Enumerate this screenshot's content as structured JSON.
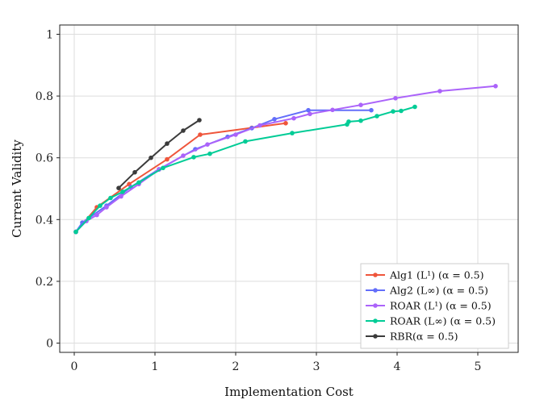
{
  "chart_data": {
    "type": "line",
    "title": "",
    "xlabel": "Implementation Cost",
    "ylabel": "Current Validity",
    "xlim": [
      -0.18,
      5.5
    ],
    "ylim": [
      -0.03,
      1.03
    ],
    "x_ticks": [
      0,
      1,
      2,
      3,
      4,
      5
    ],
    "y_ticks": [
      0,
      0.2,
      0.4,
      0.6,
      0.8,
      1
    ],
    "x_tick_labels": [
      "0",
      "1",
      "2",
      "3",
      "4",
      "5"
    ],
    "y_tick_labels": [
      "0",
      "0.2",
      "0.4",
      "0.6",
      "0.8",
      "1"
    ],
    "grid": true,
    "legend_position": "bottom-right",
    "series": [
      {
        "name": "Alg1 (L¹) (α = 0.5)",
        "color": "#ef553b",
        "points": [
          [
            0.02,
            0.36
          ],
          [
            0.28,
            0.44
          ],
          [
            0.68,
            0.515
          ],
          [
            1.15,
            0.595
          ],
          [
            1.56,
            0.675
          ],
          [
            2.2,
            0.697
          ],
          [
            2.62,
            0.712
          ]
        ]
      },
      {
        "name": "Alg2 (L∞) (α = 0.5)",
        "color": "#636efa",
        "points": [
          [
            0.02,
            0.36
          ],
          [
            0.1,
            0.39
          ],
          [
            0.4,
            0.445
          ],
          [
            0.7,
            0.505
          ],
          [
            1.05,
            0.563
          ],
          [
            1.5,
            0.628
          ],
          [
            1.9,
            0.668
          ],
          [
            2.2,
            0.696
          ],
          [
            2.48,
            0.725
          ],
          [
            2.9,
            0.754
          ],
          [
            3.68,
            0.754
          ]
        ]
      },
      {
        "name": "ROAR (L¹) (α = 0.5)",
        "color": "#ab63fa",
        "points": [
          [
            0.02,
            0.36
          ],
          [
            0.15,
            0.395
          ],
          [
            0.28,
            0.415
          ],
          [
            0.4,
            0.44
          ],
          [
            0.58,
            0.475
          ],
          [
            0.8,
            0.515
          ],
          [
            1.05,
            0.562
          ],
          [
            1.35,
            0.607
          ],
          [
            1.65,
            0.643
          ],
          [
            2.0,
            0.675
          ],
          [
            2.3,
            0.705
          ],
          [
            2.72,
            0.728
          ],
          [
            2.92,
            0.742
          ],
          [
            3.2,
            0.755
          ],
          [
            3.55,
            0.771
          ],
          [
            3.98,
            0.793
          ],
          [
            4.53,
            0.816
          ],
          [
            5.22,
            0.832
          ]
        ]
      },
      {
        "name": "ROAR (L∞) (α = 0.5)",
        "color": "#00cc96",
        "points": [
          [
            0.02,
            0.36
          ],
          [
            0.18,
            0.405
          ],
          [
            0.32,
            0.445
          ],
          [
            0.45,
            0.47
          ],
          [
            0.6,
            0.49
          ],
          [
            0.8,
            0.52
          ],
          [
            1.1,
            0.567
          ],
          [
            1.48,
            0.602
          ],
          [
            1.68,
            0.613
          ],
          [
            2.12,
            0.653
          ],
          [
            2.7,
            0.68
          ],
          [
            3.38,
            0.708
          ],
          [
            3.4,
            0.717
          ],
          [
            3.55,
            0.72
          ],
          [
            3.75,
            0.735
          ],
          [
            3.95,
            0.75
          ],
          [
            4.05,
            0.752
          ],
          [
            4.22,
            0.765
          ]
        ]
      },
      {
        "name": "RBR(α = 0.5)",
        "color": "#3b3b3b",
        "points": [
          [
            0.55,
            0.502
          ],
          [
            0.75,
            0.553
          ],
          [
            0.95,
            0.6
          ],
          [
            1.15,
            0.646
          ],
          [
            1.35,
            0.688
          ],
          [
            1.55,
            0.722
          ]
        ]
      }
    ]
  },
  "colors": {
    "grid": "#dddddd",
    "frame": "#222222",
    "legend_border": "#cccccc"
  }
}
